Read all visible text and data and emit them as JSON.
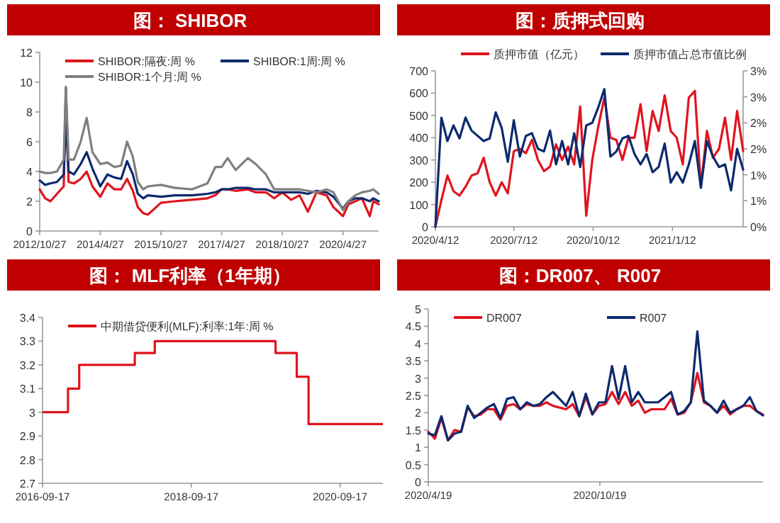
{
  "chart_data": [
    {
      "type": "line",
      "title": "图： SHIBOR",
      "legend": "top",
      "x": [
        "2012-10-27",
        "2012-12-15",
        "2013-02-01",
        "2013-04-01",
        "2013-06-01",
        "2013-06-20",
        "2013-07-15",
        "2013-09-01",
        "2013-11-01",
        "2013-12-25",
        "2014-02-15",
        "2014-04-27",
        "2014-07-01",
        "2014-09-01",
        "2014-11-01",
        "2014-12-25",
        "2015-02-15",
        "2015-04-01",
        "2015-05-20",
        "2015-07-01",
        "2015-10-27",
        "2016-03-01",
        "2016-08-01",
        "2016-12-20",
        "2017-03-01",
        "2017-04-27",
        "2017-06-20",
        "2017-09-01",
        "2017-12-20",
        "2018-03-01",
        "2018-06-01",
        "2018-08-15",
        "2018-10-27",
        "2019-01-15",
        "2019-04-01",
        "2019-06-15",
        "2019-09-01",
        "2019-12-01",
        "2020-02-01",
        "2020-04-27",
        "2020-06-15",
        "2020-08-15",
        "2020-10-15",
        "2020-12-25",
        "2021-01-25",
        "2021-03-15"
      ],
      "series": [
        {
          "name": "SHIBOR:隔夜:周 %",
          "color": "#e0141e",
          "values": [
            2.8,
            2.2,
            2.0,
            2.5,
            3.0,
            9.6,
            3.3,
            3.2,
            3.5,
            4.0,
            3.0,
            2.3,
            3.2,
            2.8,
            2.8,
            3.5,
            2.7,
            1.6,
            1.2,
            1.1,
            1.9,
            2.0,
            2.1,
            2.2,
            2.4,
            2.8,
            2.8,
            2.7,
            2.8,
            2.6,
            2.6,
            2.2,
            2.6,
            2.1,
            2.4,
            1.3,
            2.6,
            2.4,
            1.6,
            1.0,
            1.8,
            2.0,
            2.2,
            1.0,
            2.0,
            1.8
          ]
        },
        {
          "name": "SHIBOR:1周:周 %",
          "color": "#0c2a6e",
          "values": [
            3.4,
            3.1,
            3.2,
            3.3,
            3.8,
            7.5,
            4.0,
            3.8,
            4.5,
            5.3,
            4.2,
            3.0,
            3.8,
            3.6,
            3.5,
            4.7,
            3.8,
            2.5,
            2.2,
            2.4,
            2.3,
            2.4,
            2.4,
            2.5,
            2.6,
            2.8,
            2.8,
            2.9,
            2.9,
            2.8,
            2.8,
            2.6,
            2.6,
            2.6,
            2.6,
            2.5,
            2.7,
            2.6,
            2.3,
            1.5,
            2.0,
            2.2,
            2.2,
            2.0,
            2.2,
            2.0
          ]
        },
        {
          "name": "SHIBOR:1个月:周 %",
          "color": "#7f7f7f",
          "values": [
            4.0,
            3.9,
            3.9,
            4.0,
            4.8,
            9.7,
            4.8,
            4.8,
            6.0,
            7.6,
            5.3,
            4.5,
            4.6,
            4.3,
            4.4,
            6.0,
            5.0,
            3.3,
            2.8,
            3.0,
            3.1,
            2.9,
            2.8,
            3.2,
            4.3,
            4.3,
            4.9,
            4.1,
            4.9,
            4.5,
            3.8,
            2.8,
            2.8,
            2.8,
            2.8,
            2.7,
            2.6,
            2.8,
            2.6,
            1.4,
            2.0,
            2.4,
            2.6,
            2.7,
            2.8,
            2.5
          ]
        }
      ],
      "xlim": [
        "2012-10-27",
        "2021-03-15"
      ],
      "xticks": [
        {
          "value": "2012-10-27",
          "label": "2012/10/27"
        },
        {
          "value": "2014-04-27",
          "label": "2014/4/27"
        },
        {
          "value": "2015-10-27",
          "label": "2015/10/27"
        },
        {
          "value": "2017-04-27",
          "label": "2017/4/27"
        },
        {
          "value": "2018-10-27",
          "label": "2018/10/27"
        },
        {
          "value": "2020-04-27",
          "label": "2020/4/27"
        }
      ],
      "ylim": [
        0,
        12
      ],
      "yticks": [
        0,
        2,
        4,
        6,
        8,
        10,
        12
      ]
    },
    {
      "type": "line",
      "title": "图：质押式回购",
      "legend": "top",
      "x": [
        "2020-04-12",
        "2020-04-19",
        "2020-04-26",
        "2020-05-03",
        "2020-05-10",
        "2020-05-17",
        "2020-05-24",
        "2020-05-31",
        "2020-06-07",
        "2020-06-14",
        "2020-06-21",
        "2020-06-28",
        "2020-07-05",
        "2020-07-12",
        "2020-07-19",
        "2020-07-26",
        "2020-08-02",
        "2020-08-09",
        "2020-08-16",
        "2020-08-23",
        "2020-08-30",
        "2020-09-06",
        "2020-09-13",
        "2020-09-20",
        "2020-09-27",
        "2020-10-04",
        "2020-10-11",
        "2020-10-18",
        "2020-10-25",
        "2020-11-01",
        "2020-11-08",
        "2020-11-15",
        "2020-11-22",
        "2020-11-29",
        "2020-12-06",
        "2020-12-13",
        "2020-12-20",
        "2020-12-27",
        "2021-01-03",
        "2021-01-10",
        "2021-01-17",
        "2021-01-24",
        "2021-01-31",
        "2021-02-07",
        "2021-02-14",
        "2021-02-21",
        "2021-02-28",
        "2021-03-07",
        "2021-03-14",
        "2021-03-21",
        "2021-03-28",
        "2021-04-04"
      ],
      "series": [
        {
          "name": "质押市值（亿元）",
          "color": "#e0141e",
          "values": [
            0,
            120,
            230,
            160,
            140,
            180,
            230,
            240,
            310,
            200,
            140,
            200,
            150,
            340,
            350,
            330,
            390,
            300,
            250,
            270,
            370,
            300,
            360,
            280,
            540,
            50,
            300,
            450,
            580,
            400,
            390,
            300,
            400,
            400,
            550,
            340,
            520,
            430,
            590,
            430,
            400,
            280,
            580,
            610,
            180,
            430,
            310,
            350,
            490,
            300,
            520,
            340
          ]
        },
        {
          "name": "质押市值占总市值比例",
          "color": "#0c2a6e",
          "axis": "y2",
          "values": [
            0,
            2.1,
            1.65,
            1.95,
            1.7,
            2.1,
            1.85,
            1.75,
            1.65,
            1.7,
            2.2,
            1.9,
            1.25,
            2.05,
            1.35,
            1.75,
            1.8,
            1.5,
            1.45,
            1.85,
            1.2,
            1.65,
            1.2,
            1.8,
            1.15,
            1.95,
            2.0,
            2.3,
            2.65,
            1.35,
            1.45,
            1.7,
            1.75,
            1.4,
            1.2,
            1.4,
            1.05,
            1.15,
            1.6,
            0.85,
            1.05,
            0.85,
            1.2,
            1.65,
            0.75,
            1.65,
            1.35,
            1.15,
            1.2,
            0.7,
            1.5,
            1.1
          ]
        }
      ],
      "xlim": [
        "2020-04-12",
        "2021-04-04"
      ],
      "xticks": [
        {
          "value": "2020-04-12",
          "label": "2020/4/12"
        },
        {
          "value": "2020-07-12",
          "label": "2020/7/12"
        },
        {
          "value": "2020-10-12",
          "label": "2020/10/12"
        },
        {
          "value": "2021-01-12",
          "label": "2021/1/12"
        }
      ],
      "ylim": [
        0,
        700
      ],
      "yticks": [
        0,
        100,
        200,
        300,
        400,
        500,
        600,
        700
      ],
      "y2lim": [
        0,
        3
      ],
      "y2ticks": [
        {
          "value": 0,
          "label": "0%"
        },
        {
          "value": 0.5,
          "label": "1%"
        },
        {
          "value": 1,
          "label": "1%"
        },
        {
          "value": 1.5,
          "label": "2%"
        },
        {
          "value": 2,
          "label": "2%"
        },
        {
          "value": 2.5,
          "label": "3%"
        },
        {
          "value": 3,
          "label": "3%"
        }
      ]
    },
    {
      "type": "step",
      "title": "图： MLF利率（1年期）",
      "legend": "top",
      "x": [
        "2016-09-17",
        "2017-01-20",
        "2017-03-16",
        "2017-12-14",
        "2018-03-22",
        "2019-11-05",
        "2020-02-17",
        "2020-04-15",
        "2021-04-15"
      ],
      "series": [
        {
          "name": "中期借贷便利(MLF):利率:1年:周 %",
          "color": "#e0141e",
          "values": [
            3,
            3.1,
            3.2,
            3.25,
            3.3,
            3.25,
            3.15,
            2.95,
            2.95
          ]
        }
      ],
      "xlim": [
        "2016-09-17",
        "2021-04-15"
      ],
      "xticks": [
        {
          "value": "2016-09-17",
          "label": "2016-09-17"
        },
        {
          "value": "2018-09-17",
          "label": "2018-09-17"
        },
        {
          "value": "2020-09-17",
          "label": "2020-09-17"
        }
      ],
      "ylim": [
        2.7,
        3.4
      ],
      "yticks": [
        2.7,
        2.8,
        2.9,
        3,
        3.1,
        3.2,
        3.3,
        3.4
      ]
    },
    {
      "type": "line",
      "title": "图：DR007、 R007",
      "legend": "top",
      "x": [
        "2020-04-19",
        "2020-04-26",
        "2020-05-03",
        "2020-05-10",
        "2020-05-17",
        "2020-05-24",
        "2020-05-31",
        "2020-06-07",
        "2020-06-14",
        "2020-06-21",
        "2020-06-28",
        "2020-07-05",
        "2020-07-12",
        "2020-07-19",
        "2020-07-26",
        "2020-08-02",
        "2020-08-09",
        "2020-08-16",
        "2020-08-23",
        "2020-08-30",
        "2020-09-06",
        "2020-09-13",
        "2020-09-20",
        "2020-09-27",
        "2020-10-04",
        "2020-10-11",
        "2020-10-18",
        "2020-10-25",
        "2020-11-01",
        "2020-11-08",
        "2020-11-15",
        "2020-11-22",
        "2020-11-29",
        "2020-12-06",
        "2020-12-13",
        "2020-12-20",
        "2020-12-27",
        "2021-01-03",
        "2021-01-10",
        "2021-01-17",
        "2021-01-24",
        "2021-01-31",
        "2021-02-07",
        "2021-02-14",
        "2021-02-21",
        "2021-02-28",
        "2021-03-07",
        "2021-03-14",
        "2021-03-21",
        "2021-03-28",
        "2021-04-04",
        "2021-04-11"
      ],
      "series": [
        {
          "name": "DR007",
          "color": "#e0141e",
          "values": [
            1.45,
            1.25,
            1.85,
            1.2,
            1.5,
            1.45,
            2.15,
            1.9,
            1.95,
            2.1,
            2.1,
            1.8,
            2.2,
            2.25,
            2.1,
            2.25,
            2.2,
            2.2,
            2.3,
            2.2,
            2.15,
            2.1,
            2.25,
            1.9,
            2.45,
            1.95,
            2.2,
            2.25,
            2.6,
            2.25,
            2.6,
            2.2,
            2.35,
            2.0,
            2.1,
            2.1,
            2.1,
            2.4,
            1.95,
            2.0,
            2.3,
            3.15,
            2.3,
            2.2,
            2.0,
            2.2,
            1.95,
            2.1,
            2.2,
            2.2,
            2.05,
            1.95
          ]
        },
        {
          "name": "R007",
          "color": "#0c2a6e",
          "values": [
            1.4,
            1.35,
            1.9,
            1.2,
            1.4,
            1.45,
            2.2,
            1.85,
            2.0,
            2.15,
            2.25,
            1.85,
            2.4,
            2.45,
            2.1,
            2.3,
            2.2,
            2.25,
            2.45,
            2.6,
            2.4,
            2.2,
            2.6,
            1.9,
            2.55,
            1.95,
            2.3,
            2.3,
            3.35,
            2.4,
            3.35,
            2.3,
            2.6,
            2.3,
            2.3,
            2.3,
            2.45,
            2.6,
            1.95,
            2.05,
            2.3,
            4.35,
            2.35,
            2.2,
            2.0,
            2.35,
            2.0,
            2.1,
            2.2,
            2.45,
            2.05,
            1.92
          ]
        }
      ],
      "xlim": [
        "2020-04-19",
        "2021-04-11"
      ],
      "xticks": [
        {
          "value": "2020-04-19",
          "label": "2020/4/19"
        },
        {
          "value": "2020-10-19",
          "label": "2020/10/19"
        }
      ],
      "ylim": [
        0,
        5
      ],
      "yticks": [
        0,
        0.5,
        1,
        1.5,
        2,
        2.5,
        3,
        3.5,
        4,
        4.5,
        5
      ]
    }
  ]
}
